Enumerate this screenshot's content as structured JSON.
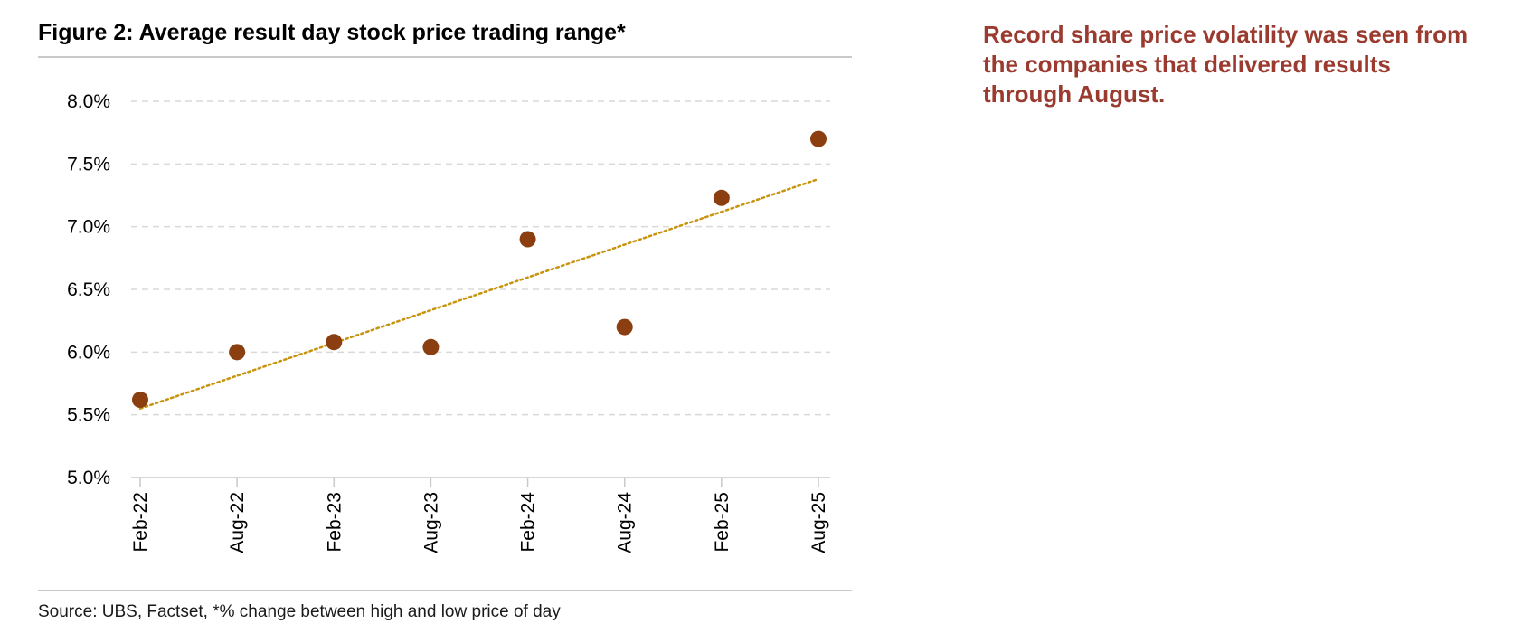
{
  "figure": {
    "title": "Figure 2: Average result day stock price trading range*",
    "source": "Source: UBS, Factset, *% change between high and low price of day"
  },
  "callout": {
    "text": "Record share price volatility was seen from the companies that delivered results through August."
  },
  "chart_data": {
    "type": "scatter",
    "title": "Figure 2: Average result day stock price trading range*",
    "xlabel": "",
    "ylabel": "",
    "categories": [
      "Feb-22",
      "Aug-22",
      "Feb-23",
      "Aug-23",
      "Feb-24",
      "Aug-24",
      "Feb-25",
      "Aug-25"
    ],
    "series": [
      {
        "values": [
          5.62,
          6.0,
          6.08,
          6.04,
          6.9,
          6.2,
          7.23,
          7.7
        ],
        "color": "#8b3e10"
      }
    ],
    "trendline": {
      "type": "linear",
      "style": "dotted",
      "color": "#c8940e",
      "start": 5.55,
      "end": 7.38
    },
    "yticks": [
      "5.0%",
      "5.5%",
      "6.0%",
      "6.5%",
      "7.0%",
      "7.5%",
      "8.0%"
    ],
    "ylim": [
      5.0,
      8.0
    ],
    "grid": true,
    "grid_color": "#d9d9d9",
    "legend": "none"
  }
}
